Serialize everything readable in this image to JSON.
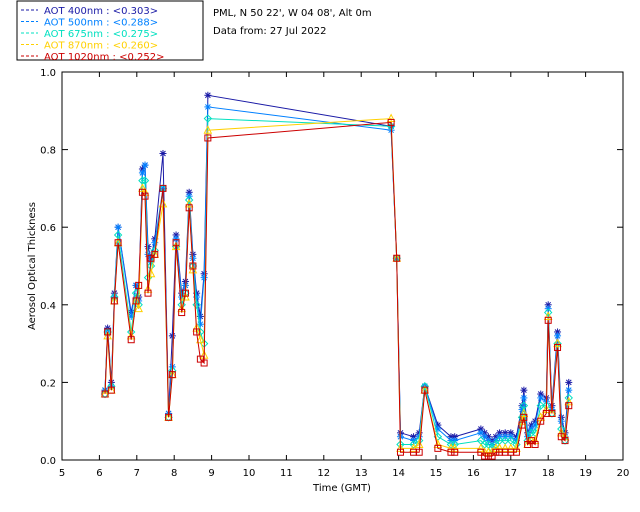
{
  "chart_data": {
    "type": "line",
    "title": "",
    "xlabel": "Time (GMT)",
    "ylabel": "Aerosol Optical Thickness",
    "xlim": [
      5,
      20
    ],
    "ylim": [
      0,
      1.0
    ],
    "xticks": [
      5,
      6,
      7,
      8,
      9,
      10,
      11,
      12,
      13,
      14,
      15,
      16,
      17,
      18,
      19,
      20
    ],
    "yticks": [
      "0.0",
      "0.2",
      "0.4",
      "0.6",
      "0.8",
      "1.0"
    ],
    "grid": false,
    "legend_position": "top-left",
    "info_lines": [
      "PML, N 50 22', W 04 08', Alt 0m",
      "Data from: 27 Jul 2022"
    ],
    "series": [
      {
        "name": "AOT  400nm : <0.303>",
        "color": "#1a1aa6",
        "marker": "star",
        "points": [
          [
            6.15,
            0.18
          ],
          [
            6.22,
            0.34
          ],
          [
            6.32,
            0.2
          ],
          [
            6.4,
            0.43
          ],
          [
            6.5,
            0.6
          ],
          [
            6.85,
            0.38
          ],
          [
            6.98,
            0.45
          ],
          [
            7.05,
            0.42
          ],
          [
            7.15,
            0.75
          ],
          [
            7.22,
            0.76
          ],
          [
            7.3,
            0.55
          ],
          [
            7.38,
            0.52
          ],
          [
            7.48,
            0.57
          ],
          [
            7.7,
            0.79
          ],
          [
            7.85,
            0.12
          ],
          [
            7.95,
            0.32
          ],
          [
            8.05,
            0.58
          ],
          [
            8.2,
            0.43
          ],
          [
            8.3,
            0.46
          ],
          [
            8.4,
            0.69
          ],
          [
            8.5,
            0.53
          ],
          [
            8.6,
            0.43
          ],
          [
            8.7,
            0.37
          ],
          [
            8.8,
            0.48
          ],
          [
            8.9,
            0.94
          ],
          [
            13.8,
            0.86
          ],
          [
            13.95,
            0.52
          ],
          [
            14.05,
            0.07
          ],
          [
            14.4,
            0.06
          ],
          [
            14.55,
            0.07
          ],
          [
            14.7,
            0.19
          ],
          [
            15.05,
            0.09
          ],
          [
            15.4,
            0.06
          ],
          [
            15.5,
            0.06
          ],
          [
            16.2,
            0.08
          ],
          [
            16.3,
            0.07
          ],
          [
            16.4,
            0.06
          ],
          [
            16.5,
            0.05
          ],
          [
            16.6,
            0.06
          ],
          [
            16.7,
            0.07
          ],
          [
            16.85,
            0.07
          ],
          [
            17.0,
            0.07
          ],
          [
            17.15,
            0.06
          ],
          [
            17.3,
            0.14
          ],
          [
            17.35,
            0.18
          ],
          [
            17.45,
            0.07
          ],
          [
            17.55,
            0.09
          ],
          [
            17.65,
            0.1
          ],
          [
            17.8,
            0.17
          ],
          [
            17.95,
            0.16
          ],
          [
            18.0,
            0.4
          ],
          [
            18.1,
            0.14
          ],
          [
            18.25,
            0.33
          ],
          [
            18.35,
            0.11
          ],
          [
            18.45,
            0.07
          ],
          [
            18.55,
            0.2
          ]
        ]
      },
      {
        "name": "AOT  500nm : <0.288>",
        "color": "#0080ff",
        "marker": "star",
        "points": [
          [
            6.15,
            0.18
          ],
          [
            6.22,
            0.33
          ],
          [
            6.32,
            0.19
          ],
          [
            6.4,
            0.42
          ],
          [
            6.5,
            0.6
          ],
          [
            6.85,
            0.37
          ],
          [
            6.98,
            0.45
          ],
          [
            7.05,
            0.41
          ],
          [
            7.15,
            0.74
          ],
          [
            7.22,
            0.76
          ],
          [
            7.3,
            0.53
          ],
          [
            7.38,
            0.51
          ],
          [
            7.48,
            0.56
          ],
          [
            7.7,
            0.7
          ],
          [
            7.85,
            0.12
          ],
          [
            7.95,
            0.24
          ],
          [
            8.05,
            0.57
          ],
          [
            8.2,
            0.42
          ],
          [
            8.3,
            0.45
          ],
          [
            8.4,
            0.68
          ],
          [
            8.5,
            0.52
          ],
          [
            8.6,
            0.42
          ],
          [
            8.7,
            0.35
          ],
          [
            8.8,
            0.47
          ],
          [
            8.9,
            0.91
          ],
          [
            13.8,
            0.85
          ],
          [
            13.95,
            0.52
          ],
          [
            14.05,
            0.06
          ],
          [
            14.4,
            0.05
          ],
          [
            14.55,
            0.06
          ],
          [
            14.7,
            0.19
          ],
          [
            15.05,
            0.08
          ],
          [
            15.4,
            0.05
          ],
          [
            15.5,
            0.05
          ],
          [
            16.2,
            0.07
          ],
          [
            16.3,
            0.06
          ],
          [
            16.4,
            0.05
          ],
          [
            16.5,
            0.04
          ],
          [
            16.6,
            0.05
          ],
          [
            16.7,
            0.06
          ],
          [
            16.85,
            0.06
          ],
          [
            17.0,
            0.06
          ],
          [
            17.15,
            0.05
          ],
          [
            17.3,
            0.13
          ],
          [
            17.35,
            0.16
          ],
          [
            17.45,
            0.06
          ],
          [
            17.55,
            0.08
          ],
          [
            17.65,
            0.09
          ],
          [
            17.8,
            0.16
          ],
          [
            17.95,
            0.15
          ],
          [
            18.0,
            0.39
          ],
          [
            18.1,
            0.13
          ],
          [
            18.25,
            0.32
          ],
          [
            18.35,
            0.1
          ],
          [
            18.45,
            0.06
          ],
          [
            18.55,
            0.18
          ]
        ]
      },
      {
        "name": "AOT  675nm : <0.275>",
        "color": "#00e0c0",
        "marker": "diamond",
        "points": [
          [
            6.15,
            0.17
          ],
          [
            6.22,
            0.33
          ],
          [
            6.32,
            0.19
          ],
          [
            6.4,
            0.42
          ],
          [
            6.5,
            0.58
          ],
          [
            6.85,
            0.33
          ],
          [
            6.98,
            0.43
          ],
          [
            7.05,
            0.4
          ],
          [
            7.15,
            0.72
          ],
          [
            7.22,
            0.72
          ],
          [
            7.3,
            0.47
          ],
          [
            7.38,
            0.5
          ],
          [
            7.48,
            0.54
          ],
          [
            7.7,
            0.7
          ],
          [
            7.85,
            0.11
          ],
          [
            7.95,
            0.23
          ],
          [
            8.05,
            0.55
          ],
          [
            8.2,
            0.4
          ],
          [
            8.3,
            0.43
          ],
          [
            8.4,
            0.67
          ],
          [
            8.5,
            0.5
          ],
          [
            8.6,
            0.4
          ],
          [
            8.7,
            0.33
          ],
          [
            8.8,
            0.3
          ],
          [
            8.9,
            0.88
          ],
          [
            13.8,
            0.86
          ],
          [
            13.95,
            0.52
          ],
          [
            14.05,
            0.04
          ],
          [
            14.4,
            0.04
          ],
          [
            14.55,
            0.05
          ],
          [
            14.7,
            0.19
          ],
          [
            15.05,
            0.06
          ],
          [
            15.4,
            0.04
          ],
          [
            15.5,
            0.04
          ],
          [
            16.2,
            0.05
          ],
          [
            16.3,
            0.04
          ],
          [
            16.4,
            0.04
          ],
          [
            16.5,
            0.03
          ],
          [
            16.6,
            0.04
          ],
          [
            16.7,
            0.05
          ],
          [
            16.85,
            0.05
          ],
          [
            17.0,
            0.05
          ],
          [
            17.15,
            0.04
          ],
          [
            17.3,
            0.11
          ],
          [
            17.35,
            0.14
          ],
          [
            17.45,
            0.05
          ],
          [
            17.55,
            0.07
          ],
          [
            17.65,
            0.07
          ],
          [
            17.8,
            0.14
          ],
          [
            17.95,
            0.14
          ],
          [
            18.0,
            0.38
          ],
          [
            18.1,
            0.12
          ],
          [
            18.25,
            0.3
          ],
          [
            18.35,
            0.08
          ],
          [
            18.45,
            0.05
          ],
          [
            18.55,
            0.16
          ]
        ]
      },
      {
        "name": "AOT  870nm : <0.260>",
        "color": "#ffd000",
        "marker": "triangle",
        "points": [
          [
            6.15,
            0.17
          ],
          [
            6.22,
            0.32
          ],
          [
            6.32,
            0.18
          ],
          [
            6.4,
            0.41
          ],
          [
            6.5,
            0.56
          ],
          [
            6.85,
            0.32
          ],
          [
            6.98,
            0.41
          ],
          [
            7.05,
            0.39
          ],
          [
            7.15,
            0.7
          ],
          [
            7.22,
            0.69
          ],
          [
            7.3,
            0.44
          ],
          [
            7.38,
            0.48
          ],
          [
            7.48,
            0.53
          ],
          [
            7.7,
            0.66
          ],
          [
            7.85,
            0.11
          ],
          [
            7.95,
            0.22
          ],
          [
            8.05,
            0.55
          ],
          [
            8.2,
            0.39
          ],
          [
            8.3,
            0.42
          ],
          [
            8.4,
            0.66
          ],
          [
            8.5,
            0.49
          ],
          [
            8.6,
            0.34
          ],
          [
            8.7,
            0.31
          ],
          [
            8.8,
            0.27
          ],
          [
            8.9,
            0.85
          ],
          [
            13.8,
            0.88
          ],
          [
            13.95,
            0.52
          ],
          [
            14.05,
            0.03
          ],
          [
            14.4,
            0.03
          ],
          [
            14.55,
            0.04
          ],
          [
            14.7,
            0.18
          ],
          [
            15.05,
            0.04
          ],
          [
            15.4,
            0.03
          ],
          [
            15.5,
            0.03
          ],
          [
            16.2,
            0.03
          ],
          [
            16.3,
            0.02
          ],
          [
            16.4,
            0.02
          ],
          [
            16.5,
            0.02
          ],
          [
            16.6,
            0.03
          ],
          [
            16.7,
            0.03
          ],
          [
            16.85,
            0.03
          ],
          [
            17.0,
            0.03
          ],
          [
            17.15,
            0.03
          ],
          [
            17.3,
            0.1
          ],
          [
            17.35,
            0.12
          ],
          [
            17.45,
            0.04
          ],
          [
            17.55,
            0.05
          ],
          [
            17.65,
            0.05
          ],
          [
            17.8,
            0.11
          ],
          [
            17.95,
            0.13
          ],
          [
            18.0,
            0.37
          ],
          [
            18.1,
            0.12
          ],
          [
            18.25,
            0.3
          ],
          [
            18.35,
            0.07
          ],
          [
            18.45,
            0.06
          ],
          [
            18.55,
            0.15
          ]
        ]
      },
      {
        "name": "AOT 1020nm : <0.252>",
        "color": "#cc0000",
        "marker": "square",
        "points": [
          [
            6.15,
            0.17
          ],
          [
            6.22,
            0.33
          ],
          [
            6.32,
            0.18
          ],
          [
            6.4,
            0.41
          ],
          [
            6.5,
            0.56
          ],
          [
            6.85,
            0.31
          ],
          [
            6.98,
            0.41
          ],
          [
            7.05,
            0.45
          ],
          [
            7.15,
            0.69
          ],
          [
            7.22,
            0.68
          ],
          [
            7.3,
            0.43
          ],
          [
            7.38,
            0.52
          ],
          [
            7.48,
            0.53
          ],
          [
            7.7,
            0.7
          ],
          [
            7.85,
            0.11
          ],
          [
            7.95,
            0.22
          ],
          [
            8.05,
            0.56
          ],
          [
            8.2,
            0.38
          ],
          [
            8.3,
            0.43
          ],
          [
            8.4,
            0.65
          ],
          [
            8.5,
            0.5
          ],
          [
            8.6,
            0.33
          ],
          [
            8.7,
            0.26
          ],
          [
            8.8,
            0.25
          ],
          [
            8.9,
            0.83
          ],
          [
            13.8,
            0.87
          ],
          [
            13.95,
            0.52
          ],
          [
            14.05,
            0.02
          ],
          [
            14.4,
            0.02
          ],
          [
            14.55,
            0.02
          ],
          [
            14.7,
            0.18
          ],
          [
            15.05,
            0.03
          ],
          [
            15.4,
            0.02
          ],
          [
            15.5,
            0.02
          ],
          [
            16.2,
            0.02
          ],
          [
            16.3,
            0.01
          ],
          [
            16.4,
            0.01
          ],
          [
            16.5,
            0.01
          ],
          [
            16.6,
            0.02
          ],
          [
            16.7,
            0.02
          ],
          [
            16.85,
            0.02
          ],
          [
            17.0,
            0.02
          ],
          [
            17.15,
            0.02
          ],
          [
            17.3,
            0.09
          ],
          [
            17.35,
            0.11
          ],
          [
            17.45,
            0.04
          ],
          [
            17.55,
            0.05
          ],
          [
            17.65,
            0.04
          ],
          [
            17.8,
            0.1
          ],
          [
            17.95,
            0.12
          ],
          [
            18.0,
            0.36
          ],
          [
            18.1,
            0.12
          ],
          [
            18.25,
            0.29
          ],
          [
            18.35,
            0.06
          ],
          [
            18.45,
            0.05
          ],
          [
            18.55,
            0.14
          ]
        ]
      }
    ]
  }
}
